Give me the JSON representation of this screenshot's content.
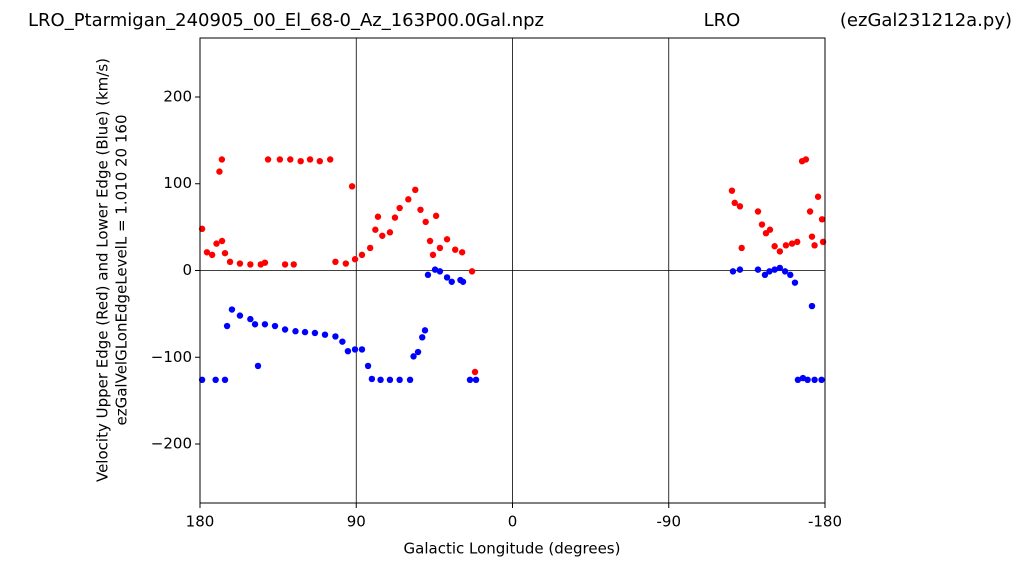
{
  "chart_data": {
    "type": "scatter",
    "title": "LRO_Ptarmigan_240905_00_El_68-0_Az_163P00.0Gal.npz",
    "title_center": "LRO",
    "title_right": "(ezGal231212a.py)",
    "xlabel": "Galactic Longitude (degrees)",
    "ylabel": [
      "Velocity Upper Edge (Red) and Lower Edge (Blue)  (km/s)",
      "ezGalVelGLonEdgeLevelL = 1.010  20  160"
    ],
    "xlim": [
      180,
      -180
    ],
    "xticks": [
      180,
      90,
      0,
      -90,
      -180
    ],
    "ylim": [
      -268,
      268
    ],
    "yticks": [
      {
        "value": -200,
        "label": "−200"
      },
      {
        "value": -100,
        "label": "−100"
      },
      0,
      100,
      200
    ],
    "grid": "x",
    "hlines": [
      0
    ],
    "series": [
      {
        "color": "#ff0000",
        "x": [
          178.8,
          176,
          173,
          170.5,
          167.4,
          168.8,
          167.3,
          165.6,
          162.7,
          157,
          151,
          145,
          142.6,
          140.8,
          134,
          128,
          122,
          116.6,
          111,
          105,
          131,
          126,
          92.4,
          102,
          96,
          90.7,
          86.7,
          82,
          79,
          77.5,
          75,
          70.6,
          67.7,
          65,
          60,
          56,
          53,
          50,
          47.5,
          45.8,
          44,
          41.8,
          37.7,
          33,
          29,
          23.3,
          21.6,
          -126.4,
          -128,
          -131,
          -132,
          -141.4,
          -143.7,
          -146,
          -148.3,
          -151,
          -154,
          -157.5,
          -161,
          -164,
          -166.8,
          -169,
          -171.4,
          -172.5,
          -174,
          -176,
          -178.3,
          -178.9
        ],
        "values": [
          48,
          21,
          18,
          31,
          128,
          114,
          34,
          20,
          10,
          8,
          7,
          7,
          9,
          128,
          128,
          128,
          126,
          128,
          126,
          128,
          7,
          7,
          97,
          10,
          8,
          13,
          18,
          26,
          47,
          62,
          40,
          44,
          61,
          72,
          82,
          93,
          70,
          56,
          34,
          18,
          63,
          26,
          36,
          24,
          21,
          -1,
          -117,
          92,
          78,
          74,
          26,
          68,
          53,
          43,
          47,
          28,
          22,
          29,
          31,
          33,
          126,
          128,
          68,
          39,
          29,
          85,
          59,
          33
        ]
      },
      {
        "color": "#0000ff",
        "x": [
          178.8,
          171,
          165.6,
          164.4,
          161.6,
          157,
          151,
          148.3,
          146.6,
          142.6,
          136.8,
          131,
          125,
          119.5,
          113.8,
          108,
          102,
          98,
          94.8,
          90.7,
          86.7,
          83.2,
          81,
          76,
          70.6,
          65,
          59,
          57,
          54.4,
          52,
          50.4,
          48.7,
          44.6,
          41.8,
          37.7,
          35,
          30,
          28.5,
          24.5,
          21,
          -127,
          -131,
          -141.4,
          -145.4,
          -148,
          -151,
          -154,
          -157,
          -160,
          -162.7,
          -164.4,
          -167.3,
          -170,
          -172.5,
          -174,
          -178
        ],
        "values": [
          -126,
          -126,
          -126,
          -64,
          -45,
          -52,
          -56,
          -62,
          -110,
          -62,
          -64,
          -68,
          -70,
          -71,
          -72,
          -74,
          -76,
          -82,
          -93,
          -91,
          -91,
          -110,
          -125,
          -126,
          -126,
          -126,
          -126,
          -99,
          -94,
          -77,
          -69,
          -5,
          1,
          -1,
          -8,
          -13,
          -11,
          -13,
          -126,
          -126,
          -1,
          1,
          1,
          -5,
          -1,
          1,
          3,
          -1,
          -5,
          -14,
          -126,
          -124,
          -126,
          -41,
          -126,
          -126
        ]
      }
    ]
  }
}
